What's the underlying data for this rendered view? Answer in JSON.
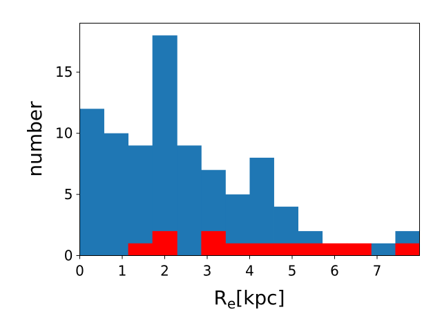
{
  "chart_data": {
    "type": "bar",
    "title": "",
    "xlabel": "R",
    "xlabel_subscript": "e",
    "xlabel_suffix": "[kpc]",
    "ylabel": "number",
    "xlim": [
      0,
      8.0
    ],
    "ylim": [
      0,
      19
    ],
    "grid": false,
    "x_ticks": [
      0,
      1,
      2,
      3,
      4,
      5,
      6,
      7
    ],
    "y_ticks": [
      0,
      5,
      10,
      15
    ],
    "bin_edges": [
      0,
      0.57,
      1.14,
      1.71,
      2.29,
      2.86,
      3.43,
      4.0,
      4.57,
      5.14,
      5.71,
      6.29,
      6.86,
      7.43,
      8.0
    ],
    "series": [
      {
        "values": [
          12,
          10,
          9,
          18,
          9,
          7,
          5,
          8,
          4,
          2,
          0,
          0,
          1,
          2
        ],
        "color": "#1f77b4"
      },
      {
        "values": [
          0,
          0,
          1,
          2,
          0,
          2,
          1,
          1,
          1,
          1,
          1,
          1,
          0,
          1
        ],
        "color": "#ff0000"
      }
    ]
  }
}
